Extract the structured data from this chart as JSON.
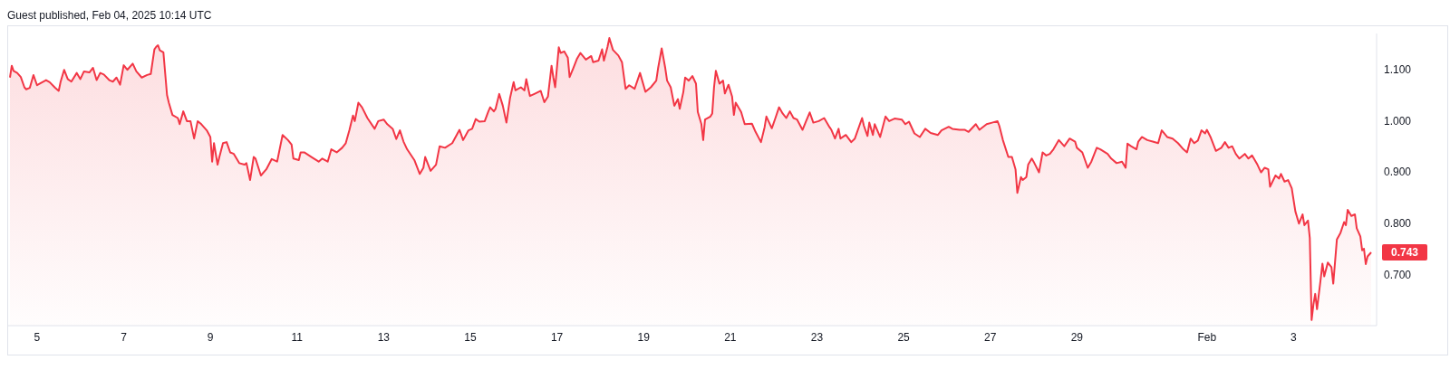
{
  "chart_data": {
    "type": "area",
    "title": "Guest published, Feb 04, 2025 10:14 UTC",
    "x": [
      "2025-01-04T09:00",
      "2025-01-04T10:00",
      "2025-01-04T11:00",
      "2025-01-04T13:00",
      "2025-01-04T15:00",
      "2025-01-04T17:00",
      "2025-01-04T18:00",
      "2025-01-04T20:00",
      "2025-01-04T22:00",
      "2025-01-05T00:00",
      "2025-01-05T02:00",
      "2025-01-05T05:00",
      "2025-01-05T07:00",
      "2025-01-05T10:00",
      "2025-01-05T12:00",
      "2025-01-05T13:00",
      "2025-01-05T15:00",
      "2025-01-05T17:00",
      "2025-01-05T19:00",
      "2025-01-05T22:00",
      "2025-01-06T00:00",
      "2025-01-06T02:00",
      "2025-01-06T05:00",
      "2025-01-06T07:00",
      "2025-01-06T09:00",
      "2025-01-06T11:00",
      "2025-01-06T13:00",
      "2025-01-06T16:00",
      "2025-01-06T18:00",
      "2025-01-06T20:00",
      "2025-01-06T22:00",
      "2025-01-07T00:00",
      "2025-01-07T02:00",
      "2025-01-07T05:00",
      "2025-01-07T07:00",
      "2025-01-07T10:00",
      "2025-01-07T13:00",
      "2025-01-07T15:00",
      "2025-01-07T17:00",
      "2025-01-07T18:00",
      "2025-01-07T19:00",
      "2025-01-07T20:00",
      "2025-01-07T22:00",
      "2025-01-08T00:00",
      "2025-01-08T01:00",
      "2025-01-08T03:00",
      "2025-01-08T06:00",
      "2025-01-08T07:00",
      "2025-01-08T09:00",
      "2025-01-08T11:00",
      "2025-01-08T13:00",
      "2025-01-08T15:00",
      "2025-01-08T17:00",
      "2025-01-08T19:00",
      "2025-01-08T22:00",
      "2025-01-09T00:00",
      "2025-01-09T01:00",
      "2025-01-09T02:00",
      "2025-01-09T04:00",
      "2025-01-09T05:00",
      "2025-01-09T07:00",
      "2025-01-09T09:00",
      "2025-01-09T11:00",
      "2025-01-09T13:00",
      "2025-01-09T16:00",
      "2025-01-09T19:00",
      "2025-01-09T20:00",
      "2025-01-09T22:00",
      "2025-01-10T00:00",
      "2025-01-10T01:00",
      "2025-01-10T04:00",
      "2025-01-10T07:00",
      "2025-01-10T10:00",
      "2025-01-10T13:00",
      "2025-01-10T16:00",
      "2025-01-10T19:00",
      "2025-01-10T21:00",
      "2025-01-10T22:00",
      "2025-01-11T01:00",
      "2025-01-11T02:00",
      "2025-01-11T04:00",
      "2025-01-11T08:00",
      "2025-01-11T12:00",
      "2025-01-11T14:00",
      "2025-01-11T17:00",
      "2025-01-11T19:00",
      "2025-01-11T22:00",
      "2025-01-12T01:00",
      "2025-01-12T03:00",
      "2025-01-12T05:00",
      "2025-01-12T07:00",
      "2025-01-12T08:00",
      "2025-01-12T10:00",
      "2025-01-12T12:00",
      "2025-01-12T15:00",
      "2025-01-12T19:00",
      "2025-01-12T21:00",
      "2025-01-13T00:00",
      "2025-01-13T02:00",
      "2025-01-13T05:00",
      "2025-01-13T07:00",
      "2025-01-13T09:00",
      "2025-01-13T11:00",
      "2025-01-13T13:00",
      "2025-01-13T17:00",
      "2025-01-13T20:00",
      "2025-01-13T22:00",
      "2025-01-13T23:00",
      "2025-01-14T02:00",
      "2025-01-14T05:00",
      "2025-01-14T07:00",
      "2025-01-14T10:00",
      "2025-01-14T14:00",
      "2025-01-14T18:00",
      "2025-01-14T20:00",
      "2025-01-14T23:00",
      "2025-01-15T01:00",
      "2025-01-15T03:00",
      "2025-01-15T05:00",
      "2025-01-15T08:00",
      "2025-01-15T10:00",
      "2025-01-15T11:00",
      "2025-01-15T13:00",
      "2025-01-15T14:00",
      "2025-01-15T16:00",
      "2025-01-15T18:00",
      "2025-01-15T20:00",
      "2025-01-15T22:00",
      "2025-01-16T00:00",
      "2025-01-16T01:00",
      "2025-01-16T04:00",
      "2025-01-16T06:00",
      "2025-01-16T07:00",
      "2025-01-16T09:00",
      "2025-01-16T12:00",
      "2025-01-16T15:00",
      "2025-01-16T17:00",
      "2025-01-16T19:00",
      "2025-01-16T21:00",
      "2025-01-16T22:00",
      "2025-01-16T23:00",
      "2025-01-17T01:00",
      "2025-01-17T02:00",
      "2025-01-17T04:00",
      "2025-01-17T06:00",
      "2025-01-17T07:00",
      "2025-01-17T09:00",
      "2025-01-17T11:00",
      "2025-01-17T13:00",
      "2025-01-17T16:00",
      "2025-01-17T19:00",
      "2025-01-17T20:00",
      "2025-01-17T23:00",
      "2025-01-18T01:00",
      "2025-01-18T02:00",
      "2025-01-18T04:00",
      "2025-01-18T05:00",
      "2025-01-18T07:00",
      "2025-01-18T10:00",
      "2025-01-18T12:00",
      "2025-01-18T14:00",
      "2025-01-18T16:00",
      "2025-01-18T19:00",
      "2025-01-18T22:00",
      "2025-01-19T01:00",
      "2025-01-19T04:00",
      "2025-01-19T07:00",
      "2025-01-19T08:00",
      "2025-01-19T10:00",
      "2025-01-19T12:00",
      "2025-01-19T13:00",
      "2025-01-19T15:00",
      "2025-01-19T17:00",
      "2025-01-19T19:00",
      "2025-01-19T20:00",
      "2025-01-19T22:00",
      "2025-01-19T23:00",
      "2025-01-20T01:00",
      "2025-01-20T03:00",
      "2025-01-20T05:00",
      "2025-01-20T06:00",
      "2025-01-20T08:00",
      "2025-01-20T09:00",
      "2025-01-20T10:00",
      "2025-01-20T13:00",
      "2025-01-20T14:00",
      "2025-01-20T15:00",
      "2025-01-20T16:00",
      "2025-01-20T18:00",
      "2025-01-20T20:00",
      "2025-01-20T21:00",
      "2025-01-20T23:00",
      "2025-01-21T01:00",
      "2025-01-21T02:00",
      "2025-01-21T03:00",
      "2025-01-21T06:00",
      "2025-01-21T08:00",
      "2025-01-21T12:00",
      "2025-01-21T14:00",
      "2025-01-21T17:00",
      "2025-01-21T19:00",
      "2025-01-21T20:00",
      "2025-01-21T23:00",
      "2025-01-22T01:00",
      "2025-01-22T03:00",
      "2025-01-22T05:00",
      "2025-01-22T07:00",
      "2025-01-22T09:00",
      "2025-01-22T11:00",
      "2025-01-22T13:00",
      "2025-01-22T16:00",
      "2025-01-22T18:00",
      "2025-01-22T20:00",
      "2025-01-22T22:00",
      "2025-01-23T01:00",
      "2025-01-23T04:00",
      "2025-01-23T07:00",
      "2025-01-23T08:00",
      "2025-01-23T10:00",
      "2025-01-23T12:00",
      "2025-01-23T13:00",
      "2025-01-23T16:00",
      "2025-01-23T19:00",
      "2025-01-23T21:00",
      "2025-01-24T01:00",
      "2025-01-24T02:00",
      "2025-01-24T04:00",
      "2025-01-24T05:00",
      "2025-01-24T07:00",
      "2025-01-24T08:00",
      "2025-01-24T11:00",
      "2025-01-24T14:00",
      "2025-01-24T16:00",
      "2025-01-24T19:00",
      "2025-01-24T23:00",
      "2025-01-25T01:00",
      "2025-01-25T03:00",
      "2025-01-25T06:00",
      "2025-01-25T09:00",
      "2025-01-25T12:00",
      "2025-01-25T15:00",
      "2025-01-25T19:00",
      "2025-01-25T21:00",
      "2025-01-26T01:00",
      "2025-01-26T03:00",
      "2025-01-26T07:00",
      "2025-01-26T10:00",
      "2025-01-26T12:00",
      "2025-01-26T16:00",
      "2025-01-26T18:00",
      "2025-01-26T22:00",
      "2025-01-27T01:00",
      "2025-01-27T04:00",
      "2025-01-27T05:00",
      "2025-01-27T07:00",
      "2025-01-27T10:00",
      "2025-01-27T12:00",
      "2025-01-27T14:00",
      "2025-01-27T15:00",
      "2025-01-27T17:00",
      "2025-01-27T18:00",
      "2025-01-27T20:00",
      "2025-01-27T21:00",
      "2025-01-27T23:00",
      "2025-01-28T00:00",
      "2025-01-28T03:00",
      "2025-01-28T05:00",
      "2025-01-28T07:00",
      "2025-01-28T09:00",
      "2025-01-28T11:00",
      "2025-01-28T14:00",
      "2025-01-28T17:00",
      "2025-01-28T20:00",
      "2025-01-28T23:00",
      "2025-01-29T00:00",
      "2025-01-29T03:00",
      "2025-01-29T06:00",
      "2025-01-29T08:00",
      "2025-01-29T11:00",
      "2025-01-29T13:00",
      "2025-01-29T17:00",
      "2025-01-29T19:00",
      "2025-01-29T22:00",
      "2025-01-30T01:00",
      "2025-01-30T03:00",
      "2025-01-30T04:00",
      "2025-01-30T06:00",
      "2025-01-30T09:00",
      "2025-01-30T10:00",
      "2025-01-30T12:00",
      "2025-01-30T15:00",
      "2025-01-30T18:00",
      "2025-01-30T21:00",
      "2025-01-30T23:00",
      "2025-01-31T02:00",
      "2025-01-31T05:00",
      "2025-01-31T08:00",
      "2025-01-31T11:00",
      "2025-01-31T13:00",
      "2025-01-31T15:00",
      "2025-01-31T17:00",
      "2025-01-31T19:00",
      "2025-01-31T21:00",
      "2025-01-31T23:00",
      "2025-02-01T00:00",
      "2025-02-01T02:00",
      "2025-02-01T05:00",
      "2025-02-01T08:00",
      "2025-02-01T10:00",
      "2025-02-01T12:00",
      "2025-02-01T14:00",
      "2025-02-01T16:00",
      "2025-02-01T18:00",
      "2025-02-01T21:00",
      "2025-02-01T23:00",
      "2025-02-02T01:00",
      "2025-02-02T04:00",
      "2025-02-02T06:00",
      "2025-02-02T08:00",
      "2025-02-02T10:00",
      "2025-02-02T11:00",
      "2025-02-02T14:00",
      "2025-02-02T16:00",
      "2025-02-02T17:00",
      "2025-02-02T19:00",
      "2025-02-02T21:00",
      "2025-02-02T23:00",
      "2025-02-03T01:00",
      "2025-02-03T03:00",
      "2025-02-03T05:00",
      "2025-02-03T06:00",
      "2025-02-03T08:00",
      "2025-02-03T09:00",
      "2025-02-03T10:00",
      "2025-02-03T11:00",
      "2025-02-03T12:00",
      "2025-02-03T13:00",
      "2025-02-03T15:00",
      "2025-02-03T16:00",
      "2025-02-03T17:00",
      "2025-02-03T19:00",
      "2025-02-03T21:00",
      "2025-02-03T22:00",
      "2025-02-04T00:00",
      "2025-02-04T02:00",
      "2025-02-04T04:00",
      "2025-02-04T05:00",
      "2025-02-04T06:00",
      "2025-02-04T08:00",
      "2025-02-04T10:00",
      "2025-02-04T11:00",
      "2025-02-04T13:00",
      "2025-02-04T14:00",
      "2025-02-04T15:00",
      "2025-02-04T16:00",
      "2025-02-04T17:00",
      "2025-02-04T19:00"
    ],
    "series": [
      {
        "color": "#f23645",
        "values": [
          1.084,
          1.107,
          1.097,
          1.093,
          1.085,
          1.065,
          1.061,
          1.064,
          1.089,
          1.069,
          1.073,
          1.079,
          1.075,
          1.064,
          1.058,
          1.075,
          1.099,
          1.081,
          1.076,
          1.093,
          1.081,
          1.096,
          1.094,
          1.103,
          1.079,
          1.093,
          1.09,
          1.079,
          1.076,
          1.084,
          1.07,
          1.108,
          1.099,
          1.111,
          1.096,
          1.084,
          1.089,
          1.091,
          1.139,
          1.144,
          1.147,
          1.137,
          1.133,
          1.05,
          1.035,
          1.011,
          1.005,
          0.993,
          1.018,
          0.999,
          0.999,
          0.965,
          0.999,
          0.993,
          0.981,
          0.968,
          0.92,
          0.956,
          0.914,
          0.929,
          0.956,
          0.958,
          0.938,
          0.935,
          0.917,
          0.914,
          0.917,
          0.884,
          0.929,
          0.926,
          0.893,
          0.905,
          0.925,
          0.92,
          0.972,
          0.962,
          0.953,
          0.926,
          0.923,
          0.938,
          0.938,
          0.929,
          0.92,
          0.926,
          0.92,
          0.944,
          0.938,
          0.947,
          0.956,
          0.981,
          1.01,
          0.999,
          1.035,
          1.026,
          1.005,
          0.984,
          0.999,
          1.002,
          0.993,
          0.984,
          0.964,
          0.981,
          0.959,
          0.944,
          0.923,
          0.896,
          0.908,
          0.929,
          0.902,
          0.914,
          0.95,
          0.947,
          0.956,
          0.982,
          0.962,
          0.981,
          0.984,
          1.003,
          0.998,
          0.999,
          1.018,
          1.026,
          1.018,
          1.023,
          1.052,
          1.029,
          0.996,
          1.044,
          1.075,
          1.059,
          1.065,
          1.059,
          1.081,
          1.048,
          1.053,
          1.058,
          1.036,
          1.047,
          1.107,
          1.084,
          1.065,
          1.143,
          1.132,
          1.135,
          1.123,
          1.085,
          1.102,
          1.12,
          1.132,
          1.119,
          1.126,
          1.114,
          1.117,
          1.139,
          1.117,
          1.144,
          1.161,
          1.138,
          1.127,
          1.114,
          1.062,
          1.069,
          1.062,
          1.093,
          1.056,
          1.065,
          1.078,
          1.102,
          1.141,
          1.102,
          1.078,
          1.065,
          1.029,
          1.042,
          1.023,
          1.056,
          1.084,
          1.078,
          1.087,
          1.072,
          1.017,
          0.993,
          0.962,
          1.002,
          1.008,
          1.014,
          1.065,
          1.097,
          1.072,
          1.078,
          1.053,
          1.07,
          1.047,
          1.011,
          1.035,
          1.017,
          0.993,
          0.994,
          0.978,
          0.958,
          0.987,
          1.008,
          0.985,
          1.005,
          1.026,
          1.014,
          1.005,
          1.018,
          1.005,
          1.002,
          0.982,
          0.999,
          1.016,
          0.996,
          0.999,
          1.005,
          0.987,
          0.982,
          0.965,
          0.984,
          0.965,
          0.972,
          0.958,
          0.965,
          1.005,
          0.99,
          0.97,
          0.996,
          0.972,
          0.993,
          0.968,
          1.008,
          0.999,
          1.004,
          1.002,
          0.993,
          0.998,
          0.975,
          0.968,
          0.984,
          0.976,
          0.972,
          0.981,
          0.988,
          0.984,
          0.982,
          0.982,
          0.978,
          0.993,
          0.982,
          0.993,
          0.996,
          0.999,
          0.99,
          0.962,
          0.929,
          0.929,
          0.905,
          0.859,
          0.89,
          0.884,
          0.89,
          0.914,
          0.926,
          0.92,
          0.899,
          0.938,
          0.932,
          0.935,
          0.944,
          0.962,
          0.95,
          0.965,
          0.959,
          0.947,
          0.938,
          0.908,
          0.92,
          0.947,
          0.944,
          0.935,
          0.926,
          0.917,
          0.92,
          0.908,
          0.955,
          0.95,
          0.944,
          0.959,
          0.968,
          0.962,
          0.959,
          0.956,
          0.981,
          0.968,
          0.965,
          0.956,
          0.944,
          0.938,
          0.965,
          0.956,
          0.961,
          0.981,
          0.975,
          0.982,
          0.968,
          0.941,
          0.947,
          0.958,
          0.947,
          0.95,
          0.935,
          0.926,
          0.935,
          0.926,
          0.932,
          0.914,
          0.899,
          0.908,
          0.905,
          0.871,
          0.893,
          0.887,
          0.896,
          0.881,
          0.884,
          0.868,
          0.823,
          0.799,
          0.817,
          0.796,
          0.805,
          0.771,
          0.611,
          0.641,
          0.662,
          0.632,
          0.69,
          0.721,
          0.696,
          0.723,
          0.714,
          0.682,
          0.768,
          0.781,
          0.802,
          0.796,
          0.826,
          0.814,
          0.817,
          0.79,
          0.774,
          0.747,
          0.75,
          0.72,
          0.735,
          0.743
        ]
      }
    ],
    "xlim": [
      "2025-01-04T08:00",
      "2025-02-04T22:00"
    ],
    "xticks": [
      {
        "value": "2025-01-05",
        "label": "5"
      },
      {
        "value": "2025-01-07",
        "label": "7"
      },
      {
        "value": "2025-01-09",
        "label": "9"
      },
      {
        "value": "2025-01-11",
        "label": "11"
      },
      {
        "value": "2025-01-13",
        "label": "13"
      },
      {
        "value": "2025-01-15",
        "label": "15"
      },
      {
        "value": "2025-01-17",
        "label": "17"
      },
      {
        "value": "2025-01-19",
        "label": "19"
      },
      {
        "value": "2025-01-21",
        "label": "21"
      },
      {
        "value": "2025-01-23",
        "label": "23"
      },
      {
        "value": "2025-01-25",
        "label": "25"
      },
      {
        "value": "2025-01-27",
        "label": "27"
      },
      {
        "value": "2025-01-29",
        "label": "29"
      },
      {
        "value": "2025-02-01",
        "label": "Feb"
      },
      {
        "value": "2025-02-03",
        "label": "3"
      }
    ],
    "ylim": [
      0.6,
      1.17
    ],
    "yticks": [
      {
        "value": 0.7,
        "label": "0.700"
      },
      {
        "value": 0.8,
        "label": "0.800"
      },
      {
        "value": 0.9,
        "label": "0.900"
      },
      {
        "value": 1.0,
        "label": "1.000"
      },
      {
        "value": 1.1,
        "label": "1.100"
      }
    ],
    "annotations": [
      {
        "text": "0.743",
        "x": "2025-02-04T19:00",
        "y": 0.743
      }
    ],
    "grid": false,
    "legend": false
  }
}
